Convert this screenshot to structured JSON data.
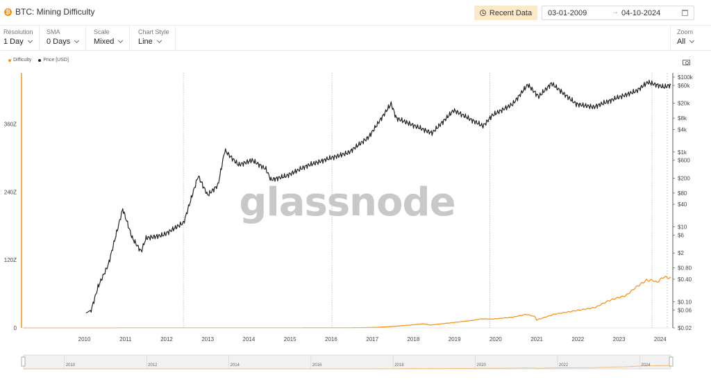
{
  "header": {
    "title": "BTC: Mining Difficulty",
    "asset_icon": "bitcoin-icon",
    "recent_button": "Recent Data",
    "date_start": "03-01-2009",
    "date_arrow": "→",
    "date_end": "04-10-2024"
  },
  "controls": [
    {
      "label": "Resolution",
      "value": "1 Day"
    },
    {
      "label": "SMA",
      "value": "0 Days"
    },
    {
      "label": "Scale",
      "value": "Mixed"
    },
    {
      "label": "Chart Style",
      "value": "Line"
    }
  ],
  "zoom": {
    "label": "Zoom",
    "value": "All"
  },
  "legend": [
    {
      "name": "Difficulty",
      "color": "#f7931a"
    },
    {
      "name": "Price [USD]",
      "color": "#222222"
    }
  ],
  "watermark": "glassnode",
  "chart_data": {
    "type": "line",
    "x_ticks": [
      "2010",
      "2011",
      "2012",
      "2013",
      "2014",
      "2015",
      "2016",
      "2017",
      "2018",
      "2019",
      "2020",
      "2021",
      "2022",
      "2023",
      "2024"
    ],
    "y_left_ticks": [
      {
        "label": "0",
        "value": 0
      },
      {
        "label": "120Z",
        "value": 120
      },
      {
        "label": "240Z",
        "value": 240
      },
      {
        "label": "360Z",
        "value": 360
      }
    ],
    "y_right_ticks": [
      {
        "label": "$100k",
        "value": 100000
      },
      {
        "label": "$60k",
        "value": 60000
      },
      {
        "label": "$20k",
        "value": 20000
      },
      {
        "label": "$8k",
        "value": 8000
      },
      {
        "label": "$4k",
        "value": 4000
      },
      {
        "label": "$1k",
        "value": 1000
      },
      {
        "label": "$600",
        "value": 600
      },
      {
        "label": "$200",
        "value": 200
      },
      {
        "label": "$80",
        "value": 80
      },
      {
        "label": "$40",
        "value": 40
      },
      {
        "label": "$10",
        "value": 10
      },
      {
        "label": "$6",
        "value": 6
      },
      {
        "label": "$2",
        "value": 2
      },
      {
        "label": "$0.80",
        "value": 0.8
      },
      {
        "label": "$0.40",
        "value": 0.4
      },
      {
        "label": "$0.10",
        "value": 0.1
      },
      {
        "label": "$0.06",
        "value": 0.06
      },
      {
        "label": "$0.02",
        "value": 0.02
      }
    ],
    "y_left_range": [
      0,
      450
    ],
    "y_right_range_log": [
      0.02,
      100000
    ],
    "x_range": [
      "2009-01-03",
      "2024-10-04"
    ],
    "left_axis_scale": "linear",
    "right_axis_scale": "log",
    "halving_lines": [
      "2012-11-28",
      "2016-07-09",
      "2020-05-11",
      "2024-04-20"
    ],
    "series": [
      {
        "name": "Difficulty",
        "axis": "left",
        "color": "#f7931a",
        "points": [
          [
            "2009-01-03",
            0
          ],
          [
            "2016-06-01",
            0.2
          ],
          [
            "2017-01-01",
            0.3
          ],
          [
            "2017-07-01",
            0.8
          ],
          [
            "2017-12-01",
            2
          ],
          [
            "2018-06-01",
            5
          ],
          [
            "2018-10-01",
            7.2
          ],
          [
            "2018-12-01",
            5.1
          ],
          [
            "2019-06-01",
            9
          ],
          [
            "2019-12-01",
            13
          ],
          [
            "2020-03-01",
            16
          ],
          [
            "2020-06-01",
            15.5
          ],
          [
            "2020-12-01",
            19
          ],
          [
            "2021-04-01",
            24
          ],
          [
            "2021-06-15",
            20
          ],
          [
            "2021-07-01",
            14
          ],
          [
            "2021-12-01",
            24
          ],
          [
            "2022-06-01",
            30
          ],
          [
            "2022-12-01",
            36
          ],
          [
            "2023-04-01",
            48
          ],
          [
            "2023-06-01",
            52
          ],
          [
            "2023-09-01",
            57
          ],
          [
            "2023-12-01",
            72
          ],
          [
            "2024-03-01",
            84
          ],
          [
            "2024-05-01",
            84
          ],
          [
            "2024-06-01",
            80
          ],
          [
            "2024-08-01",
            90
          ],
          [
            "2024-10-04",
            88
          ]
        ]
      },
      {
        "name": "Price [USD]",
        "axis": "right",
        "color": "#222222",
        "points": [
          [
            "2010-07-17",
            0.05
          ],
          [
            "2010-09-01",
            0.06
          ],
          [
            "2010-11-01",
            0.25
          ],
          [
            "2011-02-01",
            1
          ],
          [
            "2011-06-08",
            30
          ],
          [
            "2011-09-01",
            5
          ],
          [
            "2011-11-18",
            2.2
          ],
          [
            "2012-01-01",
            5
          ],
          [
            "2012-06-01",
            6
          ],
          [
            "2012-12-01",
            13
          ],
          [
            "2013-04-09",
            230
          ],
          [
            "2013-07-01",
            70
          ],
          [
            "2013-10-01",
            130
          ],
          [
            "2013-12-01",
            1100
          ],
          [
            "2014-04-01",
            450
          ],
          [
            "2014-08-01",
            600
          ],
          [
            "2014-12-01",
            350
          ],
          [
            "2015-01-14",
            180
          ],
          [
            "2015-06-01",
            230
          ],
          [
            "2015-12-01",
            430
          ],
          [
            "2016-06-01",
            650
          ],
          [
            "2016-12-01",
            950
          ],
          [
            "2017-06-01",
            2500
          ],
          [
            "2017-12-17",
            19500
          ],
          [
            "2018-02-01",
            8000
          ],
          [
            "2018-12-15",
            3200
          ],
          [
            "2019-06-26",
            13000
          ],
          [
            "2019-12-01",
            7200
          ],
          [
            "2020-03-12",
            4900
          ],
          [
            "2020-06-01",
            9500
          ],
          [
            "2020-12-01",
            19000
          ],
          [
            "2021-04-14",
            63000
          ],
          [
            "2021-07-20",
            30000
          ],
          [
            "2021-11-10",
            68000
          ],
          [
            "2022-06-18",
            19000
          ],
          [
            "2022-11-21",
            15800
          ],
          [
            "2023-06-01",
            27000
          ],
          [
            "2023-12-01",
            42000
          ],
          [
            "2024-03-14",
            73000
          ],
          [
            "2024-08-05",
            54000
          ],
          [
            "2024-10-04",
            62000
          ]
        ]
      }
    ]
  }
}
